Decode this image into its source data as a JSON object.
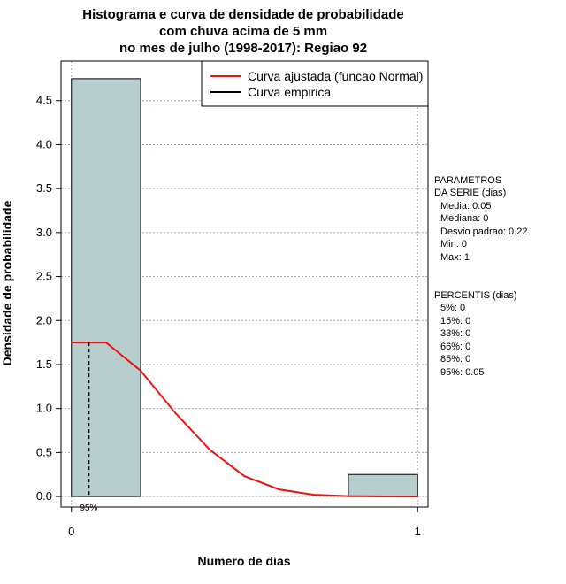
{
  "chart_data": {
    "type": "histogram",
    "title": [
      "Histograma e curva de densidade de probabilidade",
      "com chuva acima de 5 mm",
      "no mes de julho (1998-2017): Regiao 92"
    ],
    "xlabel": "Numero de dias",
    "ylabel": "Densidade de probabilidade",
    "xlim": [
      -0.03,
      1.03
    ],
    "ylim": [
      -0.12,
      4.95
    ],
    "xticks": [
      0,
      1
    ],
    "yticks": [
      0.0,
      0.5,
      1.0,
      1.5,
      2.0,
      2.5,
      3.0,
      3.5,
      4.0,
      4.5
    ],
    "ytick_labels": [
      "0.0",
      "0.5",
      "1.0",
      "1.5",
      "2.0",
      "2.5",
      "3.0",
      "3.5",
      "4.0",
      "4.5"
    ],
    "bars": [
      {
        "x0": 0.0,
        "x1": 0.2,
        "density": 4.75
      },
      {
        "x0": 0.8,
        "x1": 1.0,
        "density": 0.25
      }
    ],
    "series": [
      {
        "name": "Curva ajustada (funcao Normal)",
        "color": "#e8140f",
        "x": [
          0,
          0.1,
          0.2,
          0.3,
          0.4,
          0.5,
          0.6,
          0.7,
          0.8,
          0.9,
          1.0
        ],
        "y": [
          1.75,
          1.75,
          1.43,
          0.95,
          0.53,
          0.23,
          0.08,
          0.02,
          0.005,
          0.001,
          0.0
        ]
      },
      {
        "name": "Curva empirica",
        "color": "#000000",
        "x": [],
        "y": []
      }
    ],
    "percentile_marker": {
      "x": 0.05,
      "y_top": 1.75,
      "label": "95%"
    },
    "legend": {
      "position": "top-right"
    },
    "colors": {
      "bar_fill": "#b6cece",
      "fitted_curve": "#e8140f",
      "grid": "#aaaaaa"
    }
  },
  "side_panel": {
    "params_header": [
      "PARAMETROS",
      "DA SERIE (dias)"
    ],
    "params": [
      "Media: 0.05",
      "Mediana: 0",
      "Desvio padrao: 0.22",
      "Min: 0",
      "Max: 1"
    ],
    "percentis_header": "PERCENTIS (dias)",
    "percentis": [
      "5%: 0",
      "15%: 0",
      "33%: 0",
      "66%: 0",
      "85%: 0",
      "95%: 0.05"
    ]
  }
}
